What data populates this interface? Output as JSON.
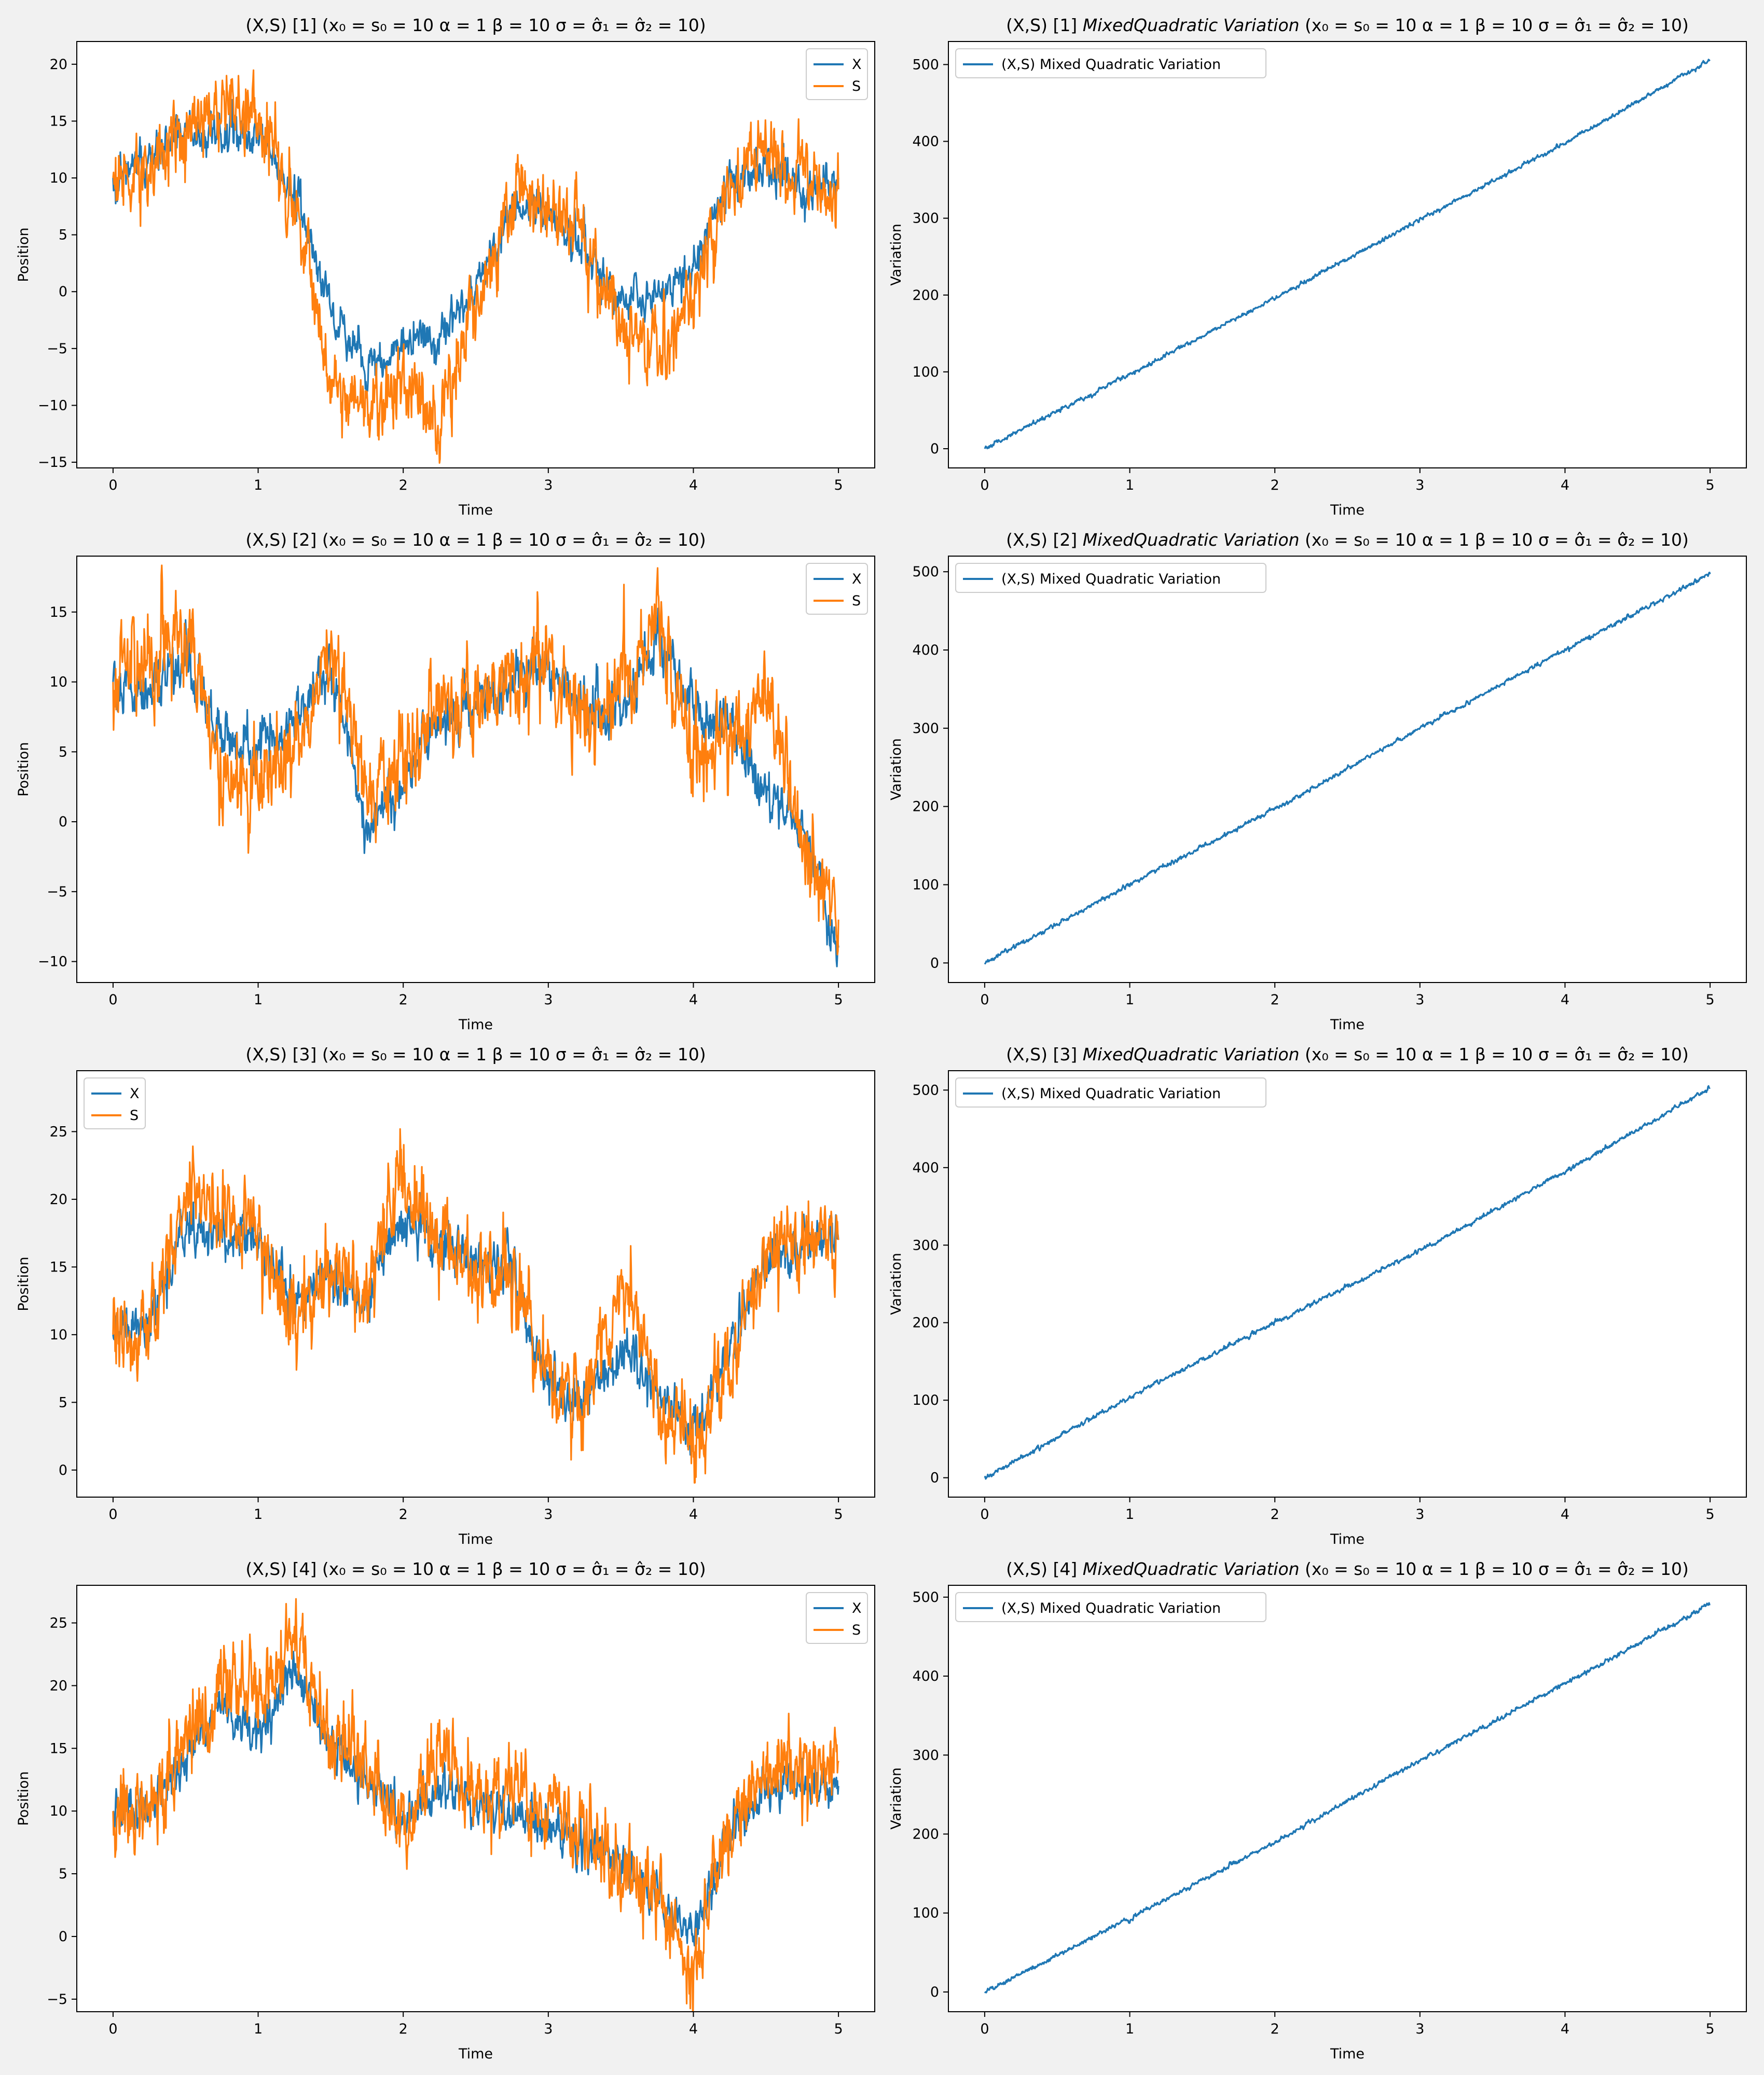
{
  "colors": {
    "X": "#1f77b4",
    "S": "#ff7f0e",
    "figure_background": "#f1f1f1",
    "axes_background": "#ffffff"
  },
  "chart_data": [
    {
      "id": "r1c1",
      "type": "line",
      "title_prefix": "(X,S) [1]",
      "title_params": "(x₀ = s₀ = 10  α = 1  β = 10  σ = σ̂₁ = σ̂₂ = 10)",
      "xlabel": "Time",
      "ylabel": "Position",
      "xlim": [
        -0.25,
        5.25
      ],
      "ylim": [
        -15.5,
        22
      ],
      "xticks": [
        0,
        1,
        2,
        3,
        4,
        5
      ],
      "yticks": [
        -15,
        -10,
        -5,
        0,
        5,
        10,
        15,
        20
      ],
      "legend": "top-right",
      "series": [
        {
          "name": "X",
          "color": "#1f77b4",
          "noise": 0.8,
          "x": [
            0,
            0.25,
            0.5,
            0.75,
            1.0,
            1.25,
            1.5,
            1.75,
            2.0,
            2.25,
            2.5,
            2.75,
            3.0,
            3.25,
            3.5,
            3.75,
            4.0,
            4.25,
            4.5,
            4.75,
            5.0
          ],
          "y": [
            10,
            12,
            14,
            14,
            14,
            9,
            -2,
            -7,
            -4,
            -4,
            0,
            8,
            7,
            4,
            -1,
            0,
            2,
            10,
            11,
            9,
            10
          ]
        },
        {
          "name": "S",
          "color": "#ff7f0e",
          "noise": 1.4,
          "x": [
            0,
            0.25,
            0.5,
            0.75,
            1.0,
            1.25,
            1.5,
            1.75,
            2.0,
            2.25,
            2.5,
            2.75,
            3.0,
            3.25,
            3.5,
            3.75,
            4.0,
            4.25,
            4.5,
            4.75,
            5.0
          ],
          "y": [
            10,
            11,
            14,
            17,
            15,
            8,
            -8,
            -10,
            -9,
            -11,
            -2,
            9,
            8,
            5,
            -3,
            -5,
            -2,
            9,
            13,
            10,
            9
          ]
        }
      ]
    },
    {
      "id": "r1c2",
      "type": "line",
      "title_prefix": "(X,S) [1]",
      "title_italic": "MixedQuadratic Variation",
      "title_params": "(x₀ = s₀ = 10  α = 1  β = 10  σ = σ̂₁ = σ̂₂ = 10)",
      "xlabel": "Time",
      "ylabel": "Variation",
      "xlim": [
        -0.25,
        5.25
      ],
      "ylim": [
        -25,
        530
      ],
      "xticks": [
        0,
        1,
        2,
        3,
        4,
        5
      ],
      "yticks": [
        0,
        100,
        200,
        300,
        400,
        500
      ],
      "legend": "top-left",
      "series": [
        {
          "name": "(X,S) Mixed Quadratic Variation",
          "color": "#1f77b4",
          "noise": 1.2,
          "x": [
            0,
            1,
            2,
            3,
            4,
            5
          ],
          "y": [
            0,
            97,
            196,
            298,
            398,
            506
          ]
        }
      ]
    },
    {
      "id": "r2c1",
      "type": "line",
      "title_prefix": "(X,S) [2]",
      "title_params": "(x₀ = s₀ = 10  α = 1  β = 10  σ = σ̂₁ = σ̂₂ = 10)",
      "xlabel": "Time",
      "ylabel": "Position",
      "xlim": [
        -0.25,
        5.25
      ],
      "ylim": [
        -11.5,
        19
      ],
      "xticks": [
        0,
        1,
        2,
        3,
        4,
        5
      ],
      "yticks": [
        -10,
        -5,
        0,
        5,
        10,
        15
      ],
      "legend": "top-right",
      "series": [
        {
          "name": "X",
          "color": "#1f77b4",
          "noise": 0.8,
          "x": [
            0,
            0.25,
            0.5,
            0.75,
            1.0,
            1.25,
            1.5,
            1.75,
            2.0,
            2.25,
            2.5,
            2.75,
            3.0,
            3.25,
            3.5,
            3.75,
            4.0,
            4.25,
            4.5,
            4.75,
            5.0
          ],
          "y": [
            10,
            9,
            12,
            6,
            5,
            7,
            11,
            -1,
            3,
            7,
            8,
            10,
            11,
            8,
            8,
            13,
            8,
            7,
            2,
            0,
            -9
          ]
        },
        {
          "name": "S",
          "color": "#ff7f0e",
          "noise": 1.4,
          "x": [
            0,
            0.25,
            0.5,
            0.75,
            1.0,
            1.25,
            1.5,
            1.75,
            2.0,
            2.25,
            2.5,
            2.75,
            3.0,
            3.25,
            3.5,
            3.75,
            4.0,
            4.25,
            4.5,
            4.75,
            5.0
          ],
          "y": [
            10,
            11,
            14,
            3,
            2,
            5,
            12,
            2,
            4,
            8,
            8,
            11,
            12,
            7,
            9,
            15,
            5,
            6,
            9,
            -2,
            -7
          ]
        }
      ]
    },
    {
      "id": "r2c2",
      "type": "line",
      "title_prefix": "(X,S) [2]",
      "title_italic": "MixedQuadratic Variation",
      "title_params": "(x₀ = s₀ = 10  α = 1  β = 10  σ = σ̂₁ = σ̂₂ = 10)",
      "xlabel": "Time",
      "ylabel": "Variation",
      "xlim": [
        -0.25,
        5.25
      ],
      "ylim": [
        -25,
        520
      ],
      "xticks": [
        0,
        1,
        2,
        3,
        4,
        5
      ],
      "yticks": [
        0,
        100,
        200,
        300,
        400,
        500
      ],
      "legend": "top-left",
      "series": [
        {
          "name": "(X,S) Mixed Quadratic Variation",
          "color": "#1f77b4",
          "noise": 1.2,
          "x": [
            0,
            1,
            2,
            3,
            4,
            5
          ],
          "y": [
            0,
            100,
            197,
            300,
            400,
            497
          ]
        }
      ]
    },
    {
      "id": "r3c1",
      "type": "line",
      "title_prefix": "(X,S) [3]",
      "title_params": "(x₀ = s₀ = 10  α = 1  β = 10  σ = σ̂₁ = σ̂₂ = 10)",
      "xlabel": "Time",
      "ylabel": "Position",
      "xlim": [
        -0.25,
        5.25
      ],
      "ylim": [
        -2,
        29.5
      ],
      "xticks": [
        0,
        1,
        2,
        3,
        4,
        5
      ],
      "yticks": [
        0,
        5,
        10,
        15,
        20,
        25
      ],
      "legend": "top-left",
      "series": [
        {
          "name": "X",
          "color": "#1f77b4",
          "noise": 0.8,
          "x": [
            0,
            0.25,
            0.5,
            0.75,
            1.0,
            1.25,
            1.5,
            1.75,
            2.0,
            2.25,
            2.5,
            2.75,
            3.0,
            3.25,
            3.5,
            3.75,
            4.0,
            4.25,
            4.5,
            4.75,
            5.0
          ],
          "y": [
            10,
            11,
            18,
            17,
            17,
            12,
            14,
            13,
            19,
            17,
            15,
            15,
            6,
            5,
            9,
            6,
            3,
            9,
            16,
            17,
            17
          ]
        },
        {
          "name": "S",
          "color": "#ff7f0e",
          "noise": 1.4,
          "x": [
            0,
            0.25,
            0.5,
            0.75,
            1.0,
            1.25,
            1.5,
            1.75,
            2.0,
            2.25,
            2.5,
            2.75,
            3.0,
            3.25,
            3.5,
            3.75,
            4.0,
            4.25,
            4.5,
            4.75,
            5.0
          ],
          "y": [
            10,
            10,
            21,
            19,
            18,
            11,
            15,
            13,
            22,
            17,
            15,
            14,
            7,
            5,
            14,
            6,
            2,
            8,
            16,
            18,
            17
          ]
        }
      ]
    },
    {
      "id": "r3c2",
      "type": "line",
      "title_prefix": "(X,S) [3]",
      "title_italic": "MixedQuadratic Variation",
      "title_params": "(x₀ = s₀ = 10  α = 1  β = 10  σ = σ̂₁ = σ̂₂ = 10)",
      "xlabel": "Time",
      "ylabel": "Variation",
      "xlim": [
        -0.25,
        5.25
      ],
      "ylim": [
        -25,
        525
      ],
      "xticks": [
        0,
        1,
        2,
        3,
        4,
        5
      ],
      "yticks": [
        0,
        100,
        200,
        300,
        400,
        500
      ],
      "legend": "top-left",
      "series": [
        {
          "name": "(X,S) Mixed Quadratic Variation",
          "color": "#1f77b4",
          "noise": 1.2,
          "x": [
            0,
            1,
            2,
            3,
            4,
            5
          ],
          "y": [
            0,
            104,
            200,
            293,
            395,
            503
          ]
        }
      ]
    },
    {
      "id": "r4c1",
      "type": "line",
      "title_prefix": "(X,S) [4]",
      "title_params": "(x₀ = s₀ = 10  α = 1  β = 10  σ = σ̂₁ = σ̂₂ = 10)",
      "xlabel": "Time",
      "ylabel": "Position",
      "xlim": [
        -0.25,
        5.25
      ],
      "ylim": [
        -6,
        28
      ],
      "xticks": [
        0,
        1,
        2,
        3,
        4,
        5
      ],
      "yticks": [
        -5,
        0,
        5,
        10,
        15,
        20,
        25
      ],
      "legend": "top-right",
      "series": [
        {
          "name": "X",
          "color": "#1f77b4",
          "noise": 0.8,
          "x": [
            0,
            0.25,
            0.5,
            0.75,
            1.0,
            1.25,
            1.5,
            1.75,
            2.0,
            2.25,
            2.5,
            2.75,
            3.0,
            3.25,
            3.5,
            3.75,
            4.0,
            4.25,
            4.5,
            4.75,
            5.0
          ],
          "y": [
            10,
            10,
            15,
            18,
            16,
            21,
            15,
            13,
            9,
            12,
            10,
            10,
            9,
            7,
            6,
            3,
            0,
            8,
            12,
            12,
            12
          ]
        },
        {
          "name": "S",
          "color": "#ff7f0e",
          "noise": 1.4,
          "x": [
            0,
            0.25,
            0.5,
            0.75,
            1.0,
            1.25,
            1.5,
            1.75,
            2.0,
            2.25,
            2.5,
            2.75,
            3.0,
            3.25,
            3.5,
            3.75,
            4.0,
            4.25,
            4.5,
            4.75,
            5.0
          ],
          "y": [
            10,
            11,
            15,
            20,
            19,
            24,
            16,
            14,
            8,
            15,
            11,
            12,
            10,
            8,
            5,
            3,
            -3,
            8,
            13,
            14,
            14
          ]
        }
      ]
    },
    {
      "id": "r4c2",
      "type": "line",
      "title_prefix": "(X,S) [4]",
      "title_italic": "MixedQuadratic Variation",
      "title_params": "(x₀ = s₀ = 10  α = 1  β = 10  σ = σ̂₁ = σ̂₂ = 10)",
      "xlabel": "Time",
      "ylabel": "Variation",
      "xlim": [
        -0.25,
        5.25
      ],
      "ylim": [
        -25,
        515
      ],
      "xticks": [
        0,
        1,
        2,
        3,
        4,
        5
      ],
      "yticks": [
        0,
        100,
        200,
        300,
        400,
        500
      ],
      "legend": "top-left",
      "series": [
        {
          "name": "(X,S) Mixed Quadratic Variation",
          "color": "#1f77b4",
          "noise": 1.2,
          "x": [
            0,
            1,
            2,
            3,
            4,
            5
          ],
          "y": [
            0,
            93,
            190,
            293,
            390,
            491
          ]
        }
      ]
    }
  ]
}
